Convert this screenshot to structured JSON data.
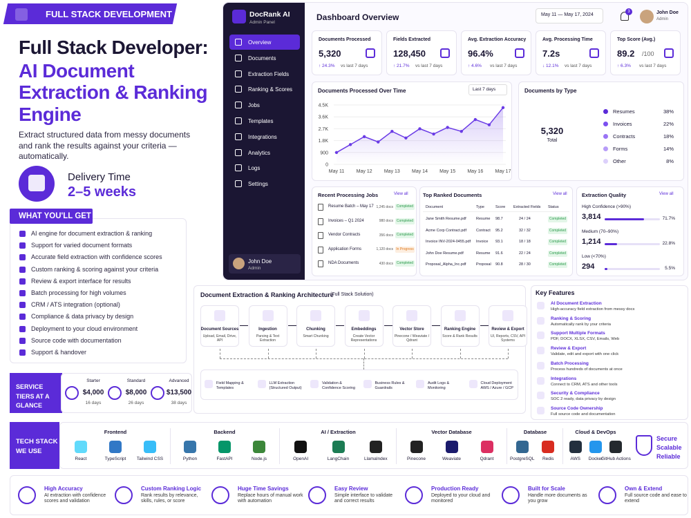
{
  "banner": {
    "title": "FULL STACK DEVELOPMENT"
  },
  "hero": {
    "heading": "Full Stack Developer:",
    "subheading": "AI Document Extraction & Ranking Engine",
    "description": "Extract structured data from messy documents and rank the results against your criteria — automatically.",
    "delivery_label": "Delivery Time",
    "delivery_value": "2–5 weeks"
  },
  "what_you_get": {
    "title": "WHAT YOU'LL GET",
    "items": [
      "AI engine for document extraction & ranking",
      "Support for varied document formats",
      "Accurate field extraction with confidence scores",
      "Custom ranking & scoring against your criteria",
      "Review & export interface for results",
      "Batch processing for high volumes",
      "CRM / ATS integration (optional)",
      "Compliance & data privacy by design",
      "Deployment to your cloud environment",
      "Source code with documentation",
      "Support & handover"
    ]
  },
  "service_tiers": {
    "title": "SERVICE TIERS AT A GLANCE",
    "tiers": [
      {
        "name": "Starter",
        "price": "$4,000",
        "duration": "16 days"
      },
      {
        "name": "Standard",
        "price": "$8,000",
        "duration": "26 days"
      },
      {
        "name": "Advanced",
        "price": "$13,500",
        "duration": "38 days"
      }
    ]
  },
  "tech_stack": {
    "title": "TECH STACK WE USE",
    "groups": [
      {
        "name": "Frontend",
        "items": [
          "React",
          "TypeScript",
          "Tailwind CSS"
        ]
      },
      {
        "name": "Backend",
        "items": [
          "Python",
          "FastAPI",
          "Node.js"
        ]
      },
      {
        "name": "AI / Extraction",
        "items": [
          "OpenAI",
          "LangChain",
          "LlamaIndex"
        ]
      },
      {
        "name": "Vector Database",
        "items": [
          "Pinecone",
          "Weaviate",
          "Qdrant"
        ]
      },
      {
        "name": "Database",
        "items": [
          "PostgreSQL",
          "Redis"
        ]
      },
      {
        "name": "Cloud & DevOps",
        "items": [
          "AWS",
          "Docker",
          "GitHub Actions"
        ]
      }
    ],
    "badge": [
      "Secure",
      "Scalable",
      "Reliable"
    ]
  },
  "benefits": [
    {
      "title": "High Accuracy",
      "text": "AI extraction with confidence scores and validation"
    },
    {
      "title": "Custom Ranking Logic",
      "text": "Rank results by relevance, skills, rules, or score"
    },
    {
      "title": "Huge Time Savings",
      "text": "Replace hours of manual work with automation"
    },
    {
      "title": "Easy Review",
      "text": "Simple interface to validate and correct results"
    },
    {
      "title": "Production Ready",
      "text": "Deployed to your cloud and monitored"
    },
    {
      "title": "Built for Scale",
      "text": "Handle more documents as you grow"
    },
    {
      "title": "Own & Extend",
      "text": "Full source code and ease to extend"
    }
  ],
  "dashboard": {
    "brand": "DocRank AI",
    "brand_sub": "Admin Panel",
    "nav": [
      "Overview",
      "Documents",
      "Extraction Fields",
      "Ranking & Scores",
      "Jobs",
      "Templates",
      "Integrations",
      "Analytics",
      "Logs",
      "Settings"
    ],
    "user": {
      "name": "John Doe",
      "role": "Admin"
    },
    "title": "Dashboard Overview",
    "date_range": "May 11 — May 17, 2024",
    "notifications": "3",
    "kpis": [
      {
        "label": "Documents Processed",
        "value": "5,320",
        "change": "↑ 24.3%",
        "compare": "vs last 7 days"
      },
      {
        "label": "Fields Extracted",
        "value": "128,450",
        "change": "↑ 21.7%",
        "compare": "vs last 7 days"
      },
      {
        "label": "Avg. Extraction Accuracy",
        "value": "96.4%",
        "change": "↑ 4.6%",
        "compare": "vs last 7 days"
      },
      {
        "label": "Avg. Processing Time",
        "value": "7.2s",
        "change": "↓ 12.1%",
        "compare": "vs last 7 days"
      },
      {
        "label": "Top Score (Avg.)",
        "value": "89.2",
        "unit": "/100",
        "change": "↑ 6.3%",
        "compare": "vs last 7 days"
      }
    ],
    "processing_chart": {
      "type": "line",
      "title": "Documents Processed Over Time",
      "range": "Last 7 days",
      "color": "#6a3be6",
      "categories": [
        "May 11",
        null,
        "May 12",
        null,
        "May 13",
        null,
        "May 14",
        null,
        "May 15",
        null,
        "May 16",
        null,
        "May 17"
      ],
      "values": [
        900,
        1500,
        2100,
        1700,
        2500,
        2000,
        2700,
        2300,
        2800,
        2500,
        3400,
        3000,
        4300
      ],
      "ylim": [
        0,
        4500
      ],
      "yticks": [
        0,
        900,
        {
          "value": 1800,
          "label": "1.8K"
        },
        {
          "value": 2700,
          "label": "2.7K"
        },
        {
          "value": 3600,
          "label": "3.6K"
        },
        {
          "value": 4500,
          "label": "4.5K"
        }
      ]
    },
    "types": {
      "type": "pie",
      "title": "Documents by Type",
      "total": "5,320",
      "total_label": "Total",
      "categories": [
        "Resumes",
        "Invoices",
        "Contracts",
        "Forms",
        "Other"
      ],
      "values": [
        38,
        22,
        18,
        14,
        8
      ],
      "value_labels": [
        "38%",
        "22%",
        "18%",
        "14%",
        "8%"
      ],
      "colors": [
        "#5b2bd8",
        "#7b4ff0",
        "#9a74f5",
        "#b79cf8",
        "#dcd0fb"
      ]
    },
    "jobs": {
      "title": "Recent Processing Jobs",
      "view_all": "View all",
      "rows": [
        [
          "Resume Batch – May 17",
          "1,245 docs",
          "Completed"
        ],
        [
          "Invoices – Q1 2024",
          "980 docs",
          "Completed"
        ],
        [
          "Vendor Contracts",
          "356 docs",
          "Completed"
        ],
        [
          "Application Forms",
          "1,120 docs",
          "In Progress"
        ],
        [
          "NDA Documents",
          "430 docs",
          "Completed"
        ]
      ]
    },
    "top": {
      "title": "Top Ranked Documents",
      "view_all": "View all",
      "columns": [
        "Document",
        "Type",
        "Score",
        "Extracted Fields",
        "Status"
      ],
      "rows": [
        [
          "Jane Smith Resume.pdf",
          "Resume",
          "98.7",
          "24 / 24",
          "Completed"
        ],
        [
          "Acme Corp Contract.pdf",
          "Contract",
          "95.2",
          "32 / 32",
          "Completed"
        ],
        [
          "Invoice INV-2024-0455.pdf",
          "Invoice",
          "93.1",
          "18 / 18",
          "Completed"
        ],
        [
          "John Doe Resume.pdf",
          "Resume",
          "91.6",
          "22 / 24",
          "Completed"
        ],
        [
          "Proposal_Alpha_Inc.pdf",
          "Proposal",
          "90.8",
          "28 / 30",
          "Completed"
        ]
      ]
    },
    "quality": {
      "title": "Extraction Quality",
      "view_all": "View all",
      "rows": [
        {
          "label": "High Confidence (>90%)",
          "count": "3,814",
          "value": 71.7,
          "value_label": "71.7%"
        },
        {
          "label": "Medium (70–90%)",
          "count": "1,214",
          "value": 22.8,
          "value_label": "22.8%"
        },
        {
          "label": "Low (<70%)",
          "count": "294",
          "value": 5.5,
          "value_label": "5.5%"
        }
      ]
    }
  },
  "architecture": {
    "title": "Document Extraction & Ranking Architecture",
    "subtitle": "(Full Stack Solution)",
    "steps": [
      {
        "title": "Document Sources",
        "text": "Upload, Email, Drive, API"
      },
      {
        "title": "Ingestion",
        "text": "Parsing & Text Extraction"
      },
      {
        "title": "Chunking",
        "text": "Smart Chunking"
      },
      {
        "title": "Embeddings",
        "text": "Create Vector Representations"
      },
      {
        "title": "Vector Store",
        "text": "Pinecone / Weaviate / Qdrant"
      },
      {
        "title": "Ranking Engine",
        "text": "Score & Rank Results"
      },
      {
        "title": "Review & Export",
        "text": "UI, Reports, CSV, API Systems"
      }
    ],
    "tools": [
      "Field Mapping & Templates",
      "LLM Extraction (Structured Output)",
      "Validation & Confidence Scoring",
      "Business Rules & Guardrails",
      "Audit Logs & Monitoring",
      "Cloud Deployment AWS / Azure / GCP"
    ]
  },
  "key_features": {
    "title": "Key Features",
    "items": [
      {
        "title": "AI Document Extraction",
        "text": "High-accuracy field extraction from messy docs"
      },
      {
        "title": "Ranking & Scoring",
        "text": "Automatically rank by your criteria"
      },
      {
        "title": "Support Multiple Formats",
        "text": "PDF, DOCX, XLSX, CSV, Emails, Web"
      },
      {
        "title": "Review & Export",
        "text": "Validate, edit and export with one click"
      },
      {
        "title": "Batch Processing",
        "text": "Process hundreds of documents at once"
      },
      {
        "title": "Integrations",
        "text": "Connect to CRM, ATS and other tools"
      },
      {
        "title": "Security & Compliance",
        "text": "SOC 2 ready, data privacy by design"
      },
      {
        "title": "Source Code Ownership",
        "text": "Full source code and documentation"
      }
    ]
  }
}
